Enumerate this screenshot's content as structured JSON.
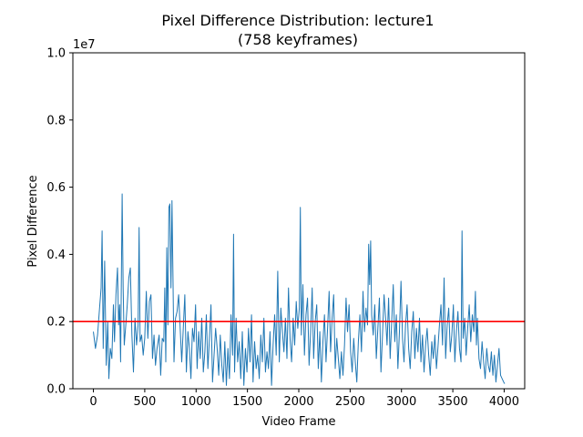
{
  "chart_data": {
    "type": "line",
    "title_line1": "Pixel Difference Distribution: lecture1",
    "title_line2": "(758 keyframes)",
    "xlabel": "Video Frame",
    "ylabel": "Pixel Difference",
    "y_scale_label": "1e7",
    "xlim": [
      -200,
      4200
    ],
    "ylim": [
      0,
      1.0
    ],
    "x_ticks": [
      0,
      500,
      1000,
      1500,
      2000,
      2500,
      3000,
      3500,
      4000
    ],
    "x_tick_labels": [
      "0",
      "500",
      "1000",
      "1500",
      "2000",
      "2500",
      "3000",
      "3500",
      "4000"
    ],
    "y_ticks": [
      0.0,
      0.2,
      0.4,
      0.6,
      0.8,
      1.0
    ],
    "y_tick_labels": [
      "0.0",
      "0.2",
      "0.4",
      "0.6",
      "0.8",
      "1.0"
    ],
    "threshold": {
      "value": 0.2,
      "color": "#ff0000"
    },
    "series": [
      {
        "color": "#1f77b4",
        "points": [
          [
            0,
            0.17
          ],
          [
            20,
            0.12
          ],
          [
            40,
            0.16
          ],
          [
            60,
            0.24
          ],
          [
            75,
            0.3
          ],
          [
            85,
            0.47
          ],
          [
            95,
            0.12
          ],
          [
            110,
            0.38
          ],
          [
            125,
            0.07
          ],
          [
            140,
            0.2
          ],
          [
            150,
            0.03
          ],
          [
            165,
            0.12
          ],
          [
            180,
            0.09
          ],
          [
            195,
            0.25
          ],
          [
            205,
            0.14
          ],
          [
            220,
            0.28
          ],
          [
            235,
            0.36
          ],
          [
            245,
            0.19
          ],
          [
            255,
            0.25
          ],
          [
            265,
            0.08
          ],
          [
            280,
            0.58
          ],
          [
            290,
            0.3
          ],
          [
            300,
            0.13
          ],
          [
            315,
            0.19
          ],
          [
            330,
            0.25
          ],
          [
            345,
            0.33
          ],
          [
            360,
            0.36
          ],
          [
            375,
            0.16
          ],
          [
            390,
            0.05
          ],
          [
            405,
            0.21
          ],
          [
            420,
            0.13
          ],
          [
            435,
            0.19
          ],
          [
            445,
            0.48
          ],
          [
            455,
            0.14
          ],
          [
            470,
            0.16
          ],
          [
            485,
            0.1
          ],
          [
            500,
            0.15
          ],
          [
            515,
            0.29
          ],
          [
            530,
            0.15
          ],
          [
            545,
            0.26
          ],
          [
            560,
            0.28
          ],
          [
            575,
            0.09
          ],
          [
            590,
            0.16
          ],
          [
            605,
            0.07
          ],
          [
            620,
            0.12
          ],
          [
            640,
            0.16
          ],
          [
            655,
            0.04
          ],
          [
            670,
            0.15
          ],
          [
            685,
            0.14
          ],
          [
            695,
            0.3
          ],
          [
            705,
            0.08
          ],
          [
            715,
            0.42
          ],
          [
            725,
            0.19
          ],
          [
            735,
            0.54
          ],
          [
            745,
            0.55
          ],
          [
            755,
            0.3
          ],
          [
            765,
            0.56
          ],
          [
            775,
            0.33
          ],
          [
            785,
            0.08
          ],
          [
            800,
            0.21
          ],
          [
            815,
            0.23
          ],
          [
            830,
            0.28
          ],
          [
            845,
            0.18
          ],
          [
            860,
            0.08
          ],
          [
            875,
            0.18
          ],
          [
            890,
            0.28
          ],
          [
            905,
            0.05
          ],
          [
            920,
            0.17
          ],
          [
            935,
            0.12
          ],
          [
            950,
            0.03
          ],
          [
            965,
            0.18
          ],
          [
            980,
            0.14
          ],
          [
            995,
            0.25
          ],
          [
            1010,
            0.06
          ],
          [
            1025,
            0.17
          ],
          [
            1040,
            0.09
          ],
          [
            1055,
            0.21
          ],
          [
            1070,
            0.05
          ],
          [
            1085,
            0.11
          ],
          [
            1100,
            0.22
          ],
          [
            1115,
            0.06
          ],
          [
            1130,
            0.15
          ],
          [
            1145,
            0.25
          ],
          [
            1160,
            0.02
          ],
          [
            1175,
            0.1
          ],
          [
            1190,
            0.18
          ],
          [
            1205,
            0.12
          ],
          [
            1220,
            0.04
          ],
          [
            1235,
            0.16
          ],
          [
            1250,
            0.07
          ],
          [
            1265,
            0.02
          ],
          [
            1280,
            0.14
          ],
          [
            1295,
            0.01
          ],
          [
            1310,
            0.12
          ],
          [
            1325,
            0.03
          ],
          [
            1340,
            0.22
          ],
          [
            1355,
            0.1
          ],
          [
            1365,
            0.46
          ],
          [
            1375,
            0.05
          ],
          [
            1390,
            0.21
          ],
          [
            1405,
            0.08
          ],
          [
            1420,
            0.14
          ],
          [
            1435,
            0.03
          ],
          [
            1450,
            0.17
          ],
          [
            1465,
            0.01
          ],
          [
            1480,
            0.12
          ],
          [
            1495,
            0.05
          ],
          [
            1510,
            0.18
          ],
          [
            1525,
            0.08
          ],
          [
            1540,
            0.22
          ],
          [
            1555,
            0.02
          ],
          [
            1570,
            0.14
          ],
          [
            1585,
            0.06
          ],
          [
            1600,
            0.1
          ],
          [
            1615,
            0.03
          ],
          [
            1630,
            0.16
          ],
          [
            1645,
            0.08
          ],
          [
            1660,
            0.21
          ],
          [
            1675,
            0.05
          ],
          [
            1690,
            0.11
          ],
          [
            1705,
            0.06
          ],
          [
            1720,
            0.17
          ],
          [
            1735,
            0.01
          ],
          [
            1750,
            0.13
          ],
          [
            1765,
            0.22
          ],
          [
            1780,
            0.1
          ],
          [
            1795,
            0.35
          ],
          [
            1810,
            0.08
          ],
          [
            1825,
            0.24
          ],
          [
            1840,
            0.17
          ],
          [
            1855,
            0.11
          ],
          [
            1870,
            0.21
          ],
          [
            1885,
            0.09
          ],
          [
            1900,
            0.3
          ],
          [
            1915,
            0.15
          ],
          [
            1930,
            0.08
          ],
          [
            1945,
            0.21
          ],
          [
            1960,
            0.13
          ],
          [
            1975,
            0.26
          ],
          [
            1990,
            0.18
          ],
          [
            2005,
            0.24
          ],
          [
            2015,
            0.54
          ],
          [
            2025,
            0.16
          ],
          [
            2040,
            0.31
          ],
          [
            2055,
            0.1
          ],
          [
            2070,
            0.22
          ],
          [
            2085,
            0.27
          ],
          [
            2100,
            0.07
          ],
          [
            2115,
            0.17
          ],
          [
            2130,
            0.3
          ],
          [
            2145,
            0.09
          ],
          [
            2160,
            0.2
          ],
          [
            2175,
            0.25
          ],
          [
            2190,
            0.06
          ],
          [
            2205,
            0.17
          ],
          [
            2220,
            0.02
          ],
          [
            2235,
            0.14
          ],
          [
            2250,
            0.22
          ],
          [
            2265,
            0.08
          ],
          [
            2280,
            0.18
          ],
          [
            2295,
            0.29
          ],
          [
            2310,
            0.11
          ],
          [
            2325,
            0.21
          ],
          [
            2340,
            0.28
          ],
          [
            2355,
            0.06
          ],
          [
            2370,
            0.15
          ],
          [
            2385,
            0.09
          ],
          [
            2400,
            0.03
          ],
          [
            2415,
            0.11
          ],
          [
            2430,
            0.04
          ],
          [
            2445,
            0.13
          ],
          [
            2460,
            0.27
          ],
          [
            2475,
            0.17
          ],
          [
            2490,
            0.25
          ],
          [
            2505,
            0.11
          ],
          [
            2520,
            0.05
          ],
          [
            2535,
            0.15
          ],
          [
            2550,
            0.08
          ],
          [
            2565,
            0.02
          ],
          [
            2580,
            0.14
          ],
          [
            2595,
            0.22
          ],
          [
            2610,
            0.11
          ],
          [
            2625,
            0.29
          ],
          [
            2640,
            0.17
          ],
          [
            2655,
            0.24
          ],
          [
            2670,
            0.19
          ],
          [
            2680,
            0.43
          ],
          [
            2690,
            0.31
          ],
          [
            2700,
            0.44
          ],
          [
            2710,
            0.22
          ],
          [
            2725,
            0.16
          ],
          [
            2740,
            0.25
          ],
          [
            2755,
            0.09
          ],
          [
            2770,
            0.18
          ],
          [
            2785,
            0.27
          ],
          [
            2800,
            0.05
          ],
          [
            2815,
            0.16
          ],
          [
            2830,
            0.28
          ],
          [
            2845,
            0.21
          ],
          [
            2860,
            0.13
          ],
          [
            2875,
            0.27
          ],
          [
            2890,
            0.09
          ],
          [
            2905,
            0.2
          ],
          [
            2920,
            0.31
          ],
          [
            2935,
            0.14
          ],
          [
            2950,
            0.22
          ],
          [
            2965,
            0.06
          ],
          [
            2980,
            0.17
          ],
          [
            2995,
            0.32
          ],
          [
            3010,
            0.15
          ],
          [
            3025,
            0.08
          ],
          [
            3040,
            0.19
          ],
          [
            3055,
            0.25
          ],
          [
            3070,
            0.12
          ],
          [
            3085,
            0.06
          ],
          [
            3100,
            0.17
          ],
          [
            3115,
            0.23
          ],
          [
            3130,
            0.09
          ],
          [
            3145,
            0.18
          ],
          [
            3160,
            0.11
          ],
          [
            3175,
            0.21
          ],
          [
            3190,
            0.08
          ],
          [
            3205,
            0.16
          ],
          [
            3220,
            0.05
          ],
          [
            3235,
            0.13
          ],
          [
            3250,
            0.18
          ],
          [
            3265,
            0.1
          ],
          [
            3280,
            0.04
          ],
          [
            3295,
            0.14
          ],
          [
            3310,
            0.09
          ],
          [
            3325,
            0.16
          ],
          [
            3340,
            0.06
          ],
          [
            3355,
            0.12
          ],
          [
            3370,
            0.19
          ],
          [
            3385,
            0.25
          ],
          [
            3400,
            0.13
          ],
          [
            3415,
            0.33
          ],
          [
            3430,
            0.09
          ],
          [
            3445,
            0.19
          ],
          [
            3460,
            0.24
          ],
          [
            3475,
            0.11
          ],
          [
            3490,
            0.16
          ],
          [
            3505,
            0.25
          ],
          [
            3520,
            0.08
          ],
          [
            3535,
            0.17
          ],
          [
            3550,
            0.23
          ],
          [
            3565,
            0.12
          ],
          [
            3580,
            0.08
          ],
          [
            3590,
            0.47
          ],
          [
            3600,
            0.15
          ],
          [
            3615,
            0.21
          ],
          [
            3630,
            0.1
          ],
          [
            3645,
            0.18
          ],
          [
            3660,
            0.25
          ],
          [
            3675,
            0.14
          ],
          [
            3690,
            0.22
          ],
          [
            3705,
            0.17
          ],
          [
            3720,
            0.29
          ],
          [
            3730,
            0.13
          ],
          [
            3740,
            0.21
          ],
          [
            3755,
            0.09
          ],
          [
            3770,
            0.06
          ],
          [
            3785,
            0.14
          ],
          [
            3800,
            0.08
          ],
          [
            3815,
            0.03
          ],
          [
            3830,
            0.12
          ],
          [
            3845,
            0.07
          ],
          [
            3860,
            0.05
          ],
          [
            3875,
            0.11
          ],
          [
            3890,
            0.04
          ],
          [
            3905,
            0.1
          ],
          [
            3920,
            0.02
          ],
          [
            3935,
            0.07
          ],
          [
            3950,
            0.12
          ],
          [
            3965,
            0.04
          ],
          [
            3980,
            0.03
          ],
          [
            3995,
            0.02
          ],
          [
            4005,
            0.015
          ]
        ]
      }
    ]
  }
}
